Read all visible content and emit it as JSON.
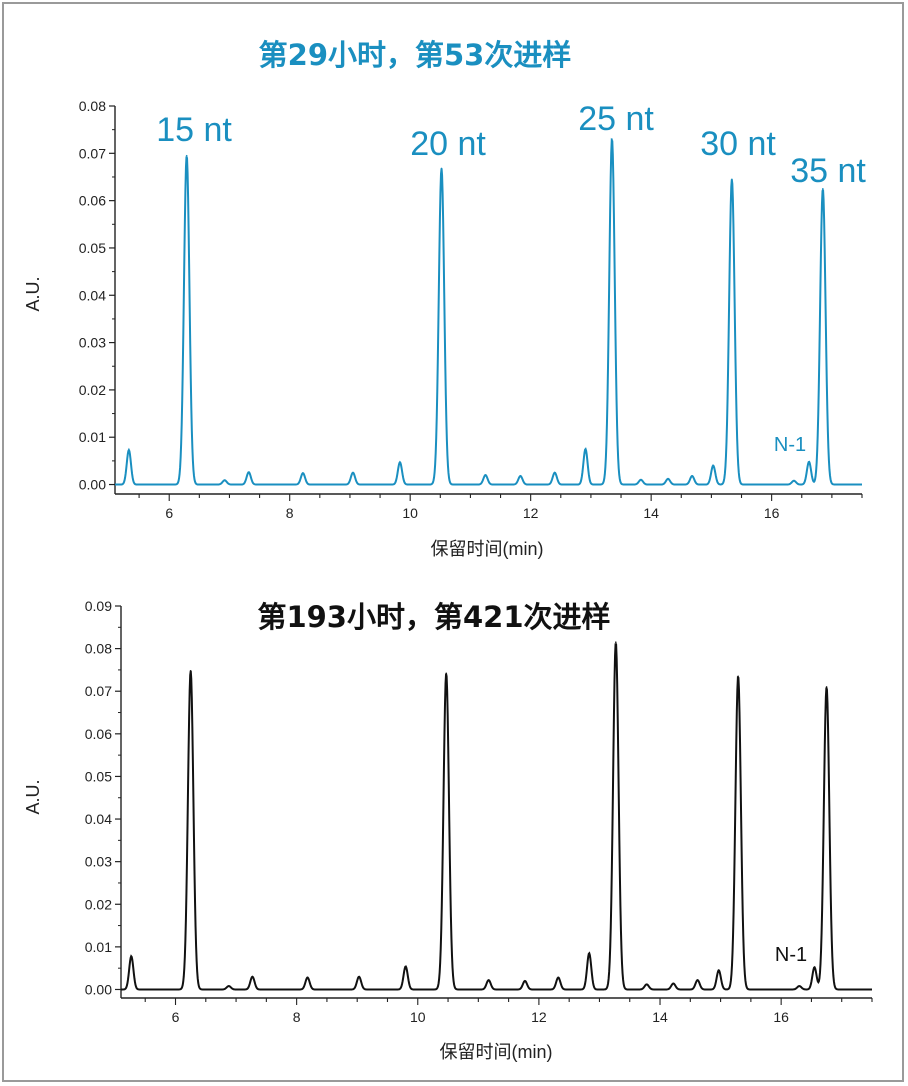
{
  "chart_data": [
    {
      "type": "line",
      "title": "第29小时，第53次进样",
      "xlabel": "保留时间(min)",
      "ylabel": "A.U.",
      "xlim": [
        5.1,
        17.5
      ],
      "ylim": [
        -0.002,
        0.08
      ],
      "xticks": [
        6,
        8,
        10,
        12,
        14,
        16
      ],
      "yticks": [
        0.0,
        0.01,
        0.02,
        0.03,
        0.04,
        0.05,
        0.06,
        0.07,
        0.08
      ],
      "ytick_labels": [
        "0.00",
        "0.01",
        "0.02",
        "0.03",
        "0.04",
        "0.05",
        "0.06",
        "0.07",
        "0.08"
      ],
      "color": "#1a8fc0",
      "baseline": 0.0,
      "peaks": [
        {
          "x": 5.33,
          "y": 0.0073
        },
        {
          "x": 6.29,
          "y": 0.0695
        },
        {
          "x": 6.92,
          "y": 0.0009
        },
        {
          "x": 7.32,
          "y": 0.0026
        },
        {
          "x": 8.22,
          "y": 0.0024
        },
        {
          "x": 9.05,
          "y": 0.0025
        },
        {
          "x": 9.83,
          "y": 0.0047
        },
        {
          "x": 10.52,
          "y": 0.0668
        },
        {
          "x": 11.25,
          "y": 0.002
        },
        {
          "x": 11.83,
          "y": 0.0018
        },
        {
          "x": 12.4,
          "y": 0.0025
        },
        {
          "x": 12.91,
          "y": 0.0075
        },
        {
          "x": 13.35,
          "y": 0.073
        },
        {
          "x": 13.83,
          "y": 0.001
        },
        {
          "x": 14.28,
          "y": 0.0012
        },
        {
          "x": 14.68,
          "y": 0.0018
        },
        {
          "x": 15.03,
          "y": 0.004
        },
        {
          "x": 15.34,
          "y": 0.0645
        },
        {
          "x": 16.37,
          "y": 0.0008
        },
        {
          "x": 16.62,
          "y": 0.0048
        },
        {
          "x": 16.85,
          "y": 0.0625
        }
      ],
      "annotations": [
        {
          "text": "15 nt",
          "x": 6.29
        },
        {
          "text": "20 nt",
          "x": 10.52
        },
        {
          "text": "25 nt",
          "x": 13.35
        },
        {
          "text": "30 nt",
          "x": 15.34
        },
        {
          "text": "35 nt",
          "x": 16.85
        },
        {
          "text": "N-1",
          "x": 16.3
        }
      ]
    },
    {
      "type": "line",
      "title": "第193小时，第421次进样",
      "xlabel": "保留时间(min)",
      "ylabel": "A.U.",
      "xlim": [
        5.1,
        17.5
      ],
      "ylim": [
        -0.002,
        0.09
      ],
      "xticks": [
        6,
        8,
        10,
        12,
        14,
        16
      ],
      "yticks": [
        0.0,
        0.01,
        0.02,
        0.03,
        0.04,
        0.05,
        0.06,
        0.07,
        0.08,
        0.09
      ],
      "ytick_labels": [
        "0.00",
        "0.01",
        "0.02",
        "0.03",
        "0.04",
        "0.05",
        "0.06",
        "0.07",
        "0.08",
        "0.09"
      ],
      "color": "#111111",
      "baseline": 0.0,
      "peaks": [
        {
          "x": 5.27,
          "y": 0.0078
        },
        {
          "x": 6.25,
          "y": 0.0748
        },
        {
          "x": 6.88,
          "y": 0.0008
        },
        {
          "x": 7.27,
          "y": 0.003
        },
        {
          "x": 8.18,
          "y": 0.0028
        },
        {
          "x": 9.03,
          "y": 0.003
        },
        {
          "x": 9.8,
          "y": 0.0054
        },
        {
          "x": 10.47,
          "y": 0.0742
        },
        {
          "x": 11.17,
          "y": 0.0022
        },
        {
          "x": 11.77,
          "y": 0.002
        },
        {
          "x": 12.32,
          "y": 0.0028
        },
        {
          "x": 12.83,
          "y": 0.0085
        },
        {
          "x": 13.27,
          "y": 0.0815
        },
        {
          "x": 13.78,
          "y": 0.0012
        },
        {
          "x": 14.22,
          "y": 0.0014
        },
        {
          "x": 14.62,
          "y": 0.0022
        },
        {
          "x": 14.97,
          "y": 0.0045
        },
        {
          "x": 15.29,
          "y": 0.0735
        },
        {
          "x": 16.3,
          "y": 0.0008
        },
        {
          "x": 16.55,
          "y": 0.0052
        },
        {
          "x": 16.75,
          "y": 0.071
        }
      ],
      "annotations": [
        {
          "text": "N-1",
          "x": 16.3
        }
      ]
    }
  ]
}
